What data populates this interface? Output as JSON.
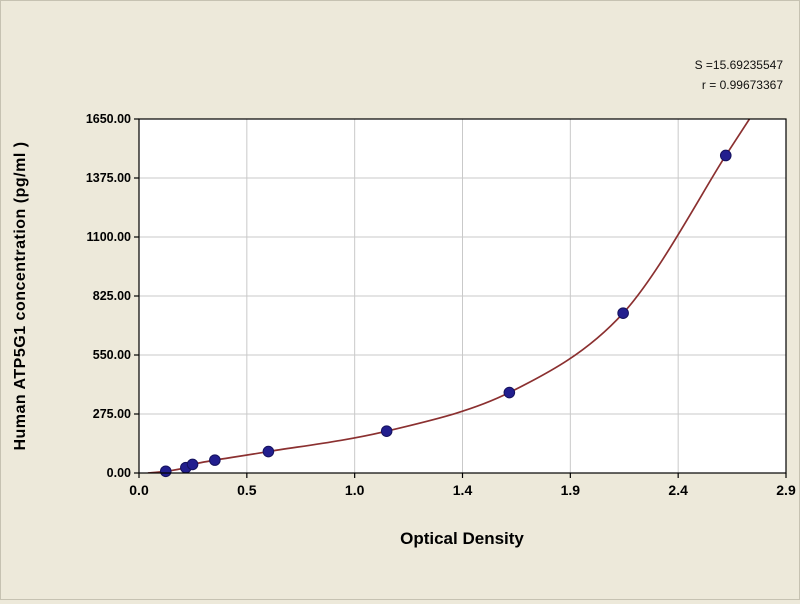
{
  "chart": {
    "title": "",
    "xlabel": "Optical Density",
    "ylabel": "Human ATP5G1 concentration (pg/ml )",
    "annotation_s": "S =15.69235547",
    "annotation_r": "r = 0.99673367"
  },
  "chart_data": {
    "type": "scatter",
    "title": "",
    "xlabel": "Optical Density",
    "ylabel": "Human ATP5G1 concentration (pg/ml )",
    "x_tick_labels": [
      "0.0",
      "0.5",
      "1.0",
      "1.4",
      "1.9",
      "2.4",
      "2.9"
    ],
    "y_tick_labels": [
      "0.00",
      "275.00",
      "550.00",
      "825.00",
      "1100.00",
      "1375.00",
      "1650.00"
    ],
    "xlim": [
      0,
      2.9
    ],
    "ylim": [
      0,
      1650
    ],
    "grid": true,
    "legend": false,
    "annotations": [
      "S =15.69235547",
      "r = 0.99673367"
    ],
    "points": [
      {
        "x": 0.12,
        "y": 8
      },
      {
        "x": 0.21,
        "y": 25
      },
      {
        "x": 0.24,
        "y": 40
      },
      {
        "x": 0.34,
        "y": 60
      },
      {
        "x": 0.58,
        "y": 100
      },
      {
        "x": 1.11,
        "y": 195
      },
      {
        "x": 1.66,
        "y": 375
      },
      {
        "x": 2.17,
        "y": 745
      },
      {
        "x": 2.63,
        "y": 1480
      }
    ],
    "curve_extension": [
      {
        "x": 0.04,
        "y": 0
      },
      {
        "x": 2.78,
        "y": 1720
      }
    ],
    "colors": {
      "background": "#ede9da",
      "plot_background": "#ffffff",
      "grid": "#c9c9c9",
      "axis": "#000000",
      "point": "#221e8e",
      "point_stroke": "#15125e",
      "curve": "#8b3030"
    }
  }
}
